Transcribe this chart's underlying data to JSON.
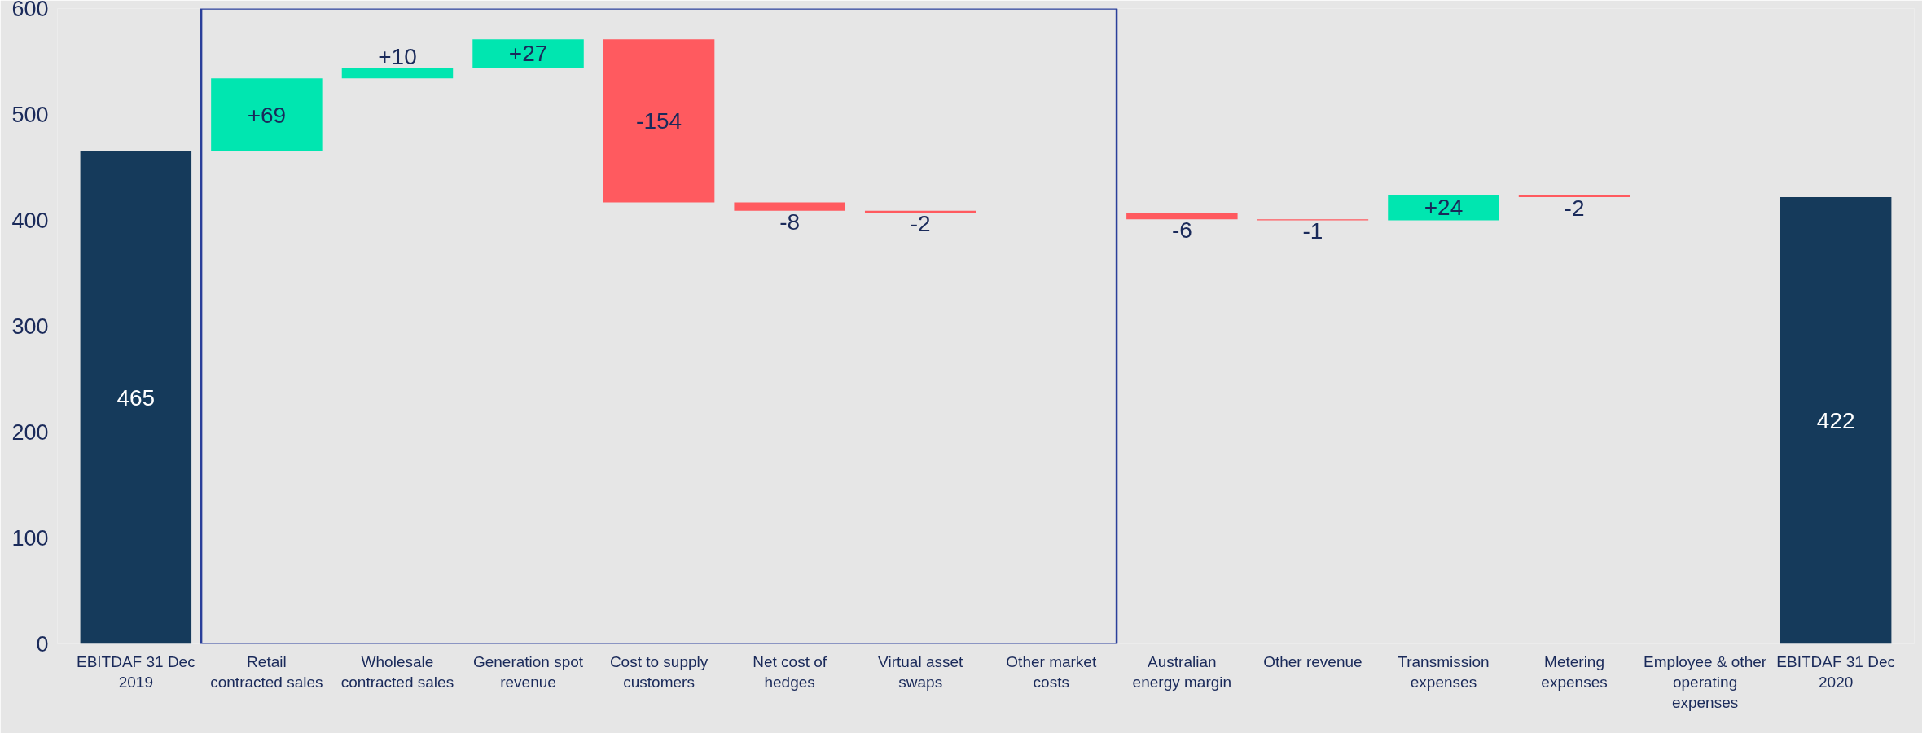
{
  "chart_data": {
    "type": "bar",
    "categories": [
      "EBITDAF 31 Dec 2019",
      "Retail contracted sales",
      "Wholesale contracted sales",
      "Generation spot revenue",
      "Cost to supply customers",
      "Net cost of hedges",
      "Virtual asset swaps",
      "Other market costs",
      "Australian energy margin",
      "Other revenue",
      "Transmission expenses",
      "Metering expenses",
      "Employee & other operating expenses",
      "EBITDAF 31 Dec 2020"
    ],
    "values": [
      465,
      69,
      10,
      27,
      -154,
      -8,
      -2,
      null,
      -6,
      -1,
      24,
      -2,
      null,
      422
    ],
    "base": [
      0,
      465,
      534,
      544,
      571,
      417,
      409,
      null,
      407,
      401,
      400,
      424,
      null,
      0
    ],
    "value_labels": [
      "465",
      "+69",
      "+10",
      "+27",
      "-154",
      "-8",
      "-2",
      null,
      "-6",
      "-1",
      "+24",
      "-2",
      null,
      "422"
    ],
    "colors": [
      "#153a5b",
      "#00e6b0",
      "#00e6b0",
      "#00e6b0",
      "#ff5a5f",
      "#ff5a5f",
      "#ff5a5f",
      "#ff5a5f",
      "#ff5a5f",
      "#ff5a5f",
      "#00e6b0",
      "#ff5a5f",
      "#ff5a5f",
      "#153a5b"
    ],
    "ylim": [
      0,
      600
    ],
    "yticks": [
      0,
      100,
      200,
      300,
      400,
      500,
      600
    ]
  }
}
